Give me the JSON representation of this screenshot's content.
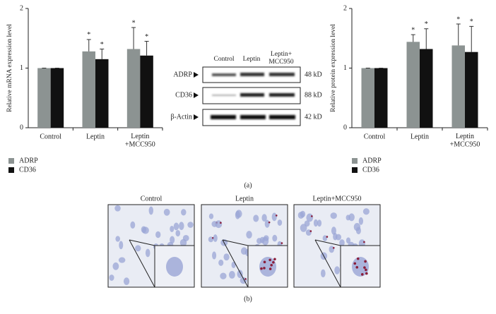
{
  "chart_data": [
    {
      "type": "bar",
      "ylabel": "Relative mRNA expression level",
      "categories": [
        "Control",
        "Leptin",
        "Leptin\n+MCC950"
      ],
      "ylim": [
        0,
        2
      ],
      "yticks": [
        0,
        1,
        2
      ],
      "legend": "below",
      "series": [
        {
          "name": "ADRP",
          "color": "#8c9392",
          "values": [
            1,
            1.28,
            1.32
          ],
          "errors": [
            0,
            0.2,
            0.36
          ],
          "markers": [
            null,
            "*",
            "*"
          ]
        },
        {
          "name": "CD36",
          "color": "#111111",
          "values": [
            1,
            1.15,
            1.21
          ],
          "errors": [
            0,
            0.17,
            0.24
          ],
          "markers": [
            null,
            "*",
            "*"
          ]
        }
      ]
    },
    {
      "type": "bar",
      "ylabel": "Relative protein expression level",
      "categories": [
        "Control",
        "Leptin",
        "Leptin\n+MCC950"
      ],
      "ylim": [
        0,
        2
      ],
      "yticks": [
        0,
        1,
        2
      ],
      "legend": "below",
      "series": [
        {
          "name": "ADRP",
          "color": "#8c9392",
          "values": [
            1,
            1.44,
            1.38
          ],
          "errors": [
            0,
            0.12,
            0.36
          ],
          "markers": [
            null,
            "*",
            "*"
          ]
        },
        {
          "name": "CD36",
          "color": "#111111",
          "values": [
            1,
            1.32,
            1.27
          ],
          "errors": [
            0,
            0.34,
            0.43
          ],
          "markers": [
            null,
            "*",
            "*"
          ]
        }
      ]
    }
  ],
  "blot": {
    "lanes": [
      "Control",
      "Leptin",
      "Leptin+\nMCC950"
    ],
    "rows": [
      {
        "label": "ADRP",
        "size": "48 kD"
      },
      {
        "label": "CD36",
        "size": "88 kD"
      },
      {
        "label": "β-Actin",
        "size": "42 kD"
      }
    ]
  },
  "panel_a": "(a)",
  "micrographs": [
    "Control",
    "Leptin",
    "Leptin+MCC950"
  ],
  "panel_b": "(b)"
}
